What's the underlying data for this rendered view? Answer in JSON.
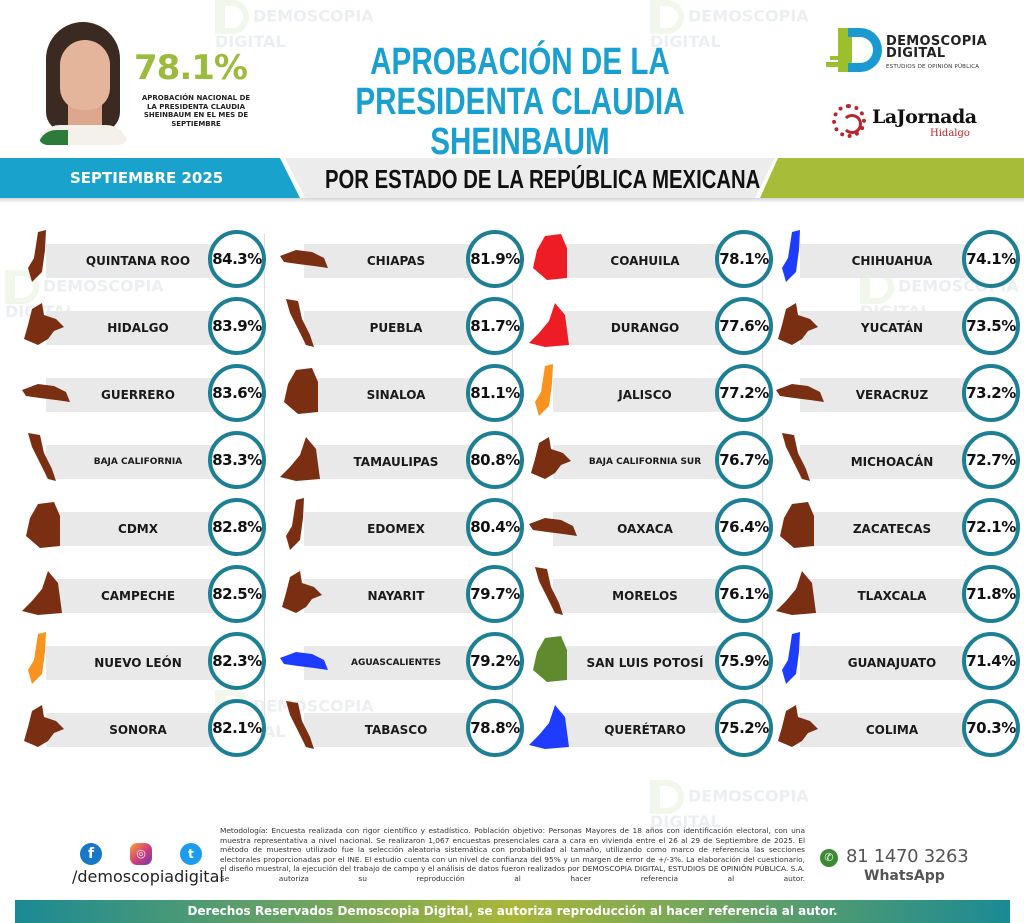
{
  "header": {
    "national_approval": "78.1%",
    "national_label": "APROBACIÓN NACIONAL DE LA PRESIDENTA CLAUDIA SHEINBAUM EN EL MES DE SEPTIEMBRE",
    "title_line1": "APROBACIÓN DE LA",
    "title_line2": "PRESIDENTA CLAUDIA SHEINBAUM",
    "logo_demoscopia_line1": "DEMOSCOPIA",
    "logo_demoscopia_line2": "DIGITAL",
    "logo_demoscopia_tagline": "ESTUDIOS DE OPINIÓN PÚBLICA",
    "logo_jornada_name": "LaJornada",
    "logo_jornada_sub": "Hidalgo"
  },
  "band": {
    "month": "SEPTIEMBRE 2025",
    "subtitle": "POR ESTADO DE LA REPÚBLICA MEXICANA"
  },
  "colors": {
    "brown": "#7a2e12",
    "orange": "#f7931e",
    "red": "#ee1c25",
    "blue": "#1e3cff",
    "green": "#5f8a2e",
    "circle_border": "#1c7f93",
    "title_blue": "#1aa0d0",
    "accent_green": "#9cbb3c"
  },
  "chart_data": {
    "type": "table",
    "title": "APROBACIÓN DE LA PRESIDENTA CLAUDIA SHEINBAUM — POR ESTADO DE LA REPÚBLICA MEXICANA",
    "subtitle": "SEPTIEMBRE 2025",
    "national": 78.1,
    "unit": "%",
    "categories": [
      "QUINTANA ROO",
      "HIDALGO",
      "GUERRERO",
      "BAJA CALIFORNIA",
      "CDMX",
      "CAMPECHE",
      "NUEVO LEÓN",
      "SONORA",
      "CHIAPAS",
      "PUEBLA",
      "SINALOA",
      "TAMAULIPAS",
      "EDOMEX",
      "NAYARIT",
      "AGUASCALIENTES",
      "TABASCO",
      "COAHUILA",
      "DURANGO",
      "JALISCO",
      "BAJA CALIFORNIA SUR",
      "OAXACA",
      "MORELOS",
      "SAN LUIS POTOSÍ",
      "QUERÉTARO",
      "CHIHUAHUA",
      "YUCATÁN",
      "VERACRUZ",
      "MICHOACÁN",
      "ZACATECAS",
      "TLAXCALA",
      "GUANAJUATO",
      "COLIMA"
    ],
    "values": [
      84.3,
      83.9,
      83.6,
      83.3,
      82.8,
      82.5,
      82.3,
      82.1,
      81.9,
      81.7,
      81.1,
      80.8,
      80.4,
      79.7,
      79.2,
      78.8,
      78.1,
      77.6,
      77.2,
      76.7,
      76.4,
      76.1,
      75.9,
      75.2,
      74.1,
      73.5,
      73.2,
      72.7,
      72.1,
      71.8,
      71.4,
      70.3
    ]
  },
  "columns": [
    {
      "rows": [
        {
          "name": "QUINTANA ROO",
          "pct": "84.3%",
          "color": "brown",
          "small": false
        },
        {
          "name": "HIDALGO",
          "pct": "83.9%",
          "color": "brown",
          "small": false
        },
        {
          "name": "GUERRERO",
          "pct": "83.6%",
          "color": "brown",
          "small": false
        },
        {
          "name": "BAJA CALIFORNIA",
          "pct": "83.3%",
          "color": "brown",
          "small": true
        },
        {
          "name": "CDMX",
          "pct": "82.8%",
          "color": "brown",
          "small": false
        },
        {
          "name": "CAMPECHE",
          "pct": "82.5%",
          "color": "brown",
          "small": false
        },
        {
          "name": "NUEVO LEÓN",
          "pct": "82.3%",
          "color": "orange",
          "small": false
        },
        {
          "name": "SONORA",
          "pct": "82.1%",
          "color": "brown",
          "small": false
        }
      ]
    },
    {
      "rows": [
        {
          "name": "CHIAPAS",
          "pct": "81.9%",
          "color": "brown",
          "small": false
        },
        {
          "name": "PUEBLA",
          "pct": "81.7%",
          "color": "brown",
          "small": false
        },
        {
          "name": "SINALOA",
          "pct": "81.1%",
          "color": "brown",
          "small": false
        },
        {
          "name": "TAMAULIPAS",
          "pct": "80.8%",
          "color": "brown",
          "small": false
        },
        {
          "name": "EDOMEX",
          "pct": "80.4%",
          "color": "brown",
          "small": false
        },
        {
          "name": "NAYARIT",
          "pct": "79.7%",
          "color": "brown",
          "small": false
        },
        {
          "name": "AGUASCALIENTES",
          "pct": "79.2%",
          "color": "blue",
          "small": true
        },
        {
          "name": "TABASCO",
          "pct": "78.8%",
          "color": "brown",
          "small": false
        }
      ]
    },
    {
      "rows": [
        {
          "name": "COAHUILA",
          "pct": "78.1%",
          "color": "red",
          "small": false
        },
        {
          "name": "DURANGO",
          "pct": "77.6%",
          "color": "red",
          "small": false
        },
        {
          "name": "JALISCO",
          "pct": "77.2%",
          "color": "orange",
          "small": false
        },
        {
          "name": "BAJA CALIFORNIA SUR",
          "pct": "76.7%",
          "color": "brown",
          "small": true
        },
        {
          "name": "OAXACA",
          "pct": "76.4%",
          "color": "brown",
          "small": false
        },
        {
          "name": "MORELOS",
          "pct": "76.1%",
          "color": "brown",
          "small": false
        },
        {
          "name": "SAN LUIS POTOSÍ",
          "pct": "75.9%",
          "color": "green",
          "small": false
        },
        {
          "name": "QUERÉTARO",
          "pct": "75.2%",
          "color": "blue",
          "small": false
        }
      ]
    },
    {
      "rows": [
        {
          "name": "CHIHUAHUA",
          "pct": "74.1%",
          "color": "blue",
          "small": false
        },
        {
          "name": "YUCATÁN",
          "pct": "73.5%",
          "color": "brown",
          "small": false
        },
        {
          "name": "VERACRUZ",
          "pct": "73.2%",
          "color": "brown",
          "small": false
        },
        {
          "name": "MICHOACÁN",
          "pct": "72.7%",
          "color": "brown",
          "small": false
        },
        {
          "name": "ZACATECAS",
          "pct": "72.1%",
          "color": "brown",
          "small": false
        },
        {
          "name": "TLAXCALA",
          "pct": "71.8%",
          "color": "brown",
          "small": false
        },
        {
          "name": "GUANAJUATO",
          "pct": "71.4%",
          "color": "blue",
          "small": false
        },
        {
          "name": "COLIMA",
          "pct": "70.3%",
          "color": "brown",
          "small": false
        }
      ]
    }
  ],
  "footer": {
    "social_icons": [
      "facebook-icon",
      "instagram-icon",
      "twitter-icon"
    ],
    "handle": "/demoscopiadigital",
    "methodology": "Metodología: Encuesta realizada con rigor científico y estadístico. Población objetivo: Personas Mayores de 18 años con identificación electoral, con una muestra representativa a nivel nacional. Se realizaron 1,067 encuestas presenciales cara a cara en vivienda entre el 26 al 29 de Septiembre de 2025. El método de muestreo utilizado fue la selección aleatoria sistemática con probabilidad al tamaño, utilizando como marco de referencia las secciones electorales proporcionadas por el INE. El estudio cuenta con un nivel de confianza del 95% y un margen de error de +/-3%. La elaboración del cuestionario, el diseño muestral, la ejecución del trabajo de campo y el análisis de datos fueron realizados por DEMOSCOPIA DIGITAL, ESTUDIOS DE OPINIÓN PÚBLICA. S.A. Se autoriza su reproducción al hacer referencia al autor.",
    "whatsapp_number": "81 1470 3263",
    "whatsapp_label": "WhatsApp",
    "rights": "Derechos Reservados Demoscopia Digital, se autoriza reproducción al hacer referencia al autor."
  }
}
